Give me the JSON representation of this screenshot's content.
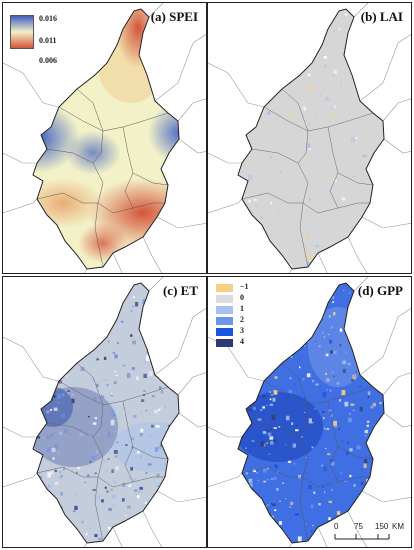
{
  "panels": {
    "a": {
      "title": "(a) SPEI",
      "colorbar": {
        "max": "0.016",
        "mid": "0.011",
        "min": "0.006"
      }
    },
    "b": {
      "title": "(b) LAI"
    },
    "c": {
      "title": "(c) ET"
    },
    "d": {
      "title": "(d) GPP"
    }
  },
  "legend": {
    "items": [
      {
        "label": "−1",
        "color": "#f6cf86"
      },
      {
        "label": "0",
        "color": "#dcdcdc"
      },
      {
        "label": "1",
        "color": "#a7c2ec"
      },
      {
        "label": "2",
        "color": "#6d95e8"
      },
      {
        "label": "3",
        "color": "#1a55e0"
      },
      {
        "label": "4",
        "color": "#2e3a78"
      }
    ]
  },
  "scale_bar": {
    "labels": [
      "0",
      "75",
      "150"
    ],
    "unit": "KM"
  },
  "colors": {
    "spei_blue": "#3f5fc0",
    "spei_mid": "#f3f1c8",
    "spei_red": "#d4553a",
    "lai_gray": "#d6d6d6",
    "et_base": "#c4cddc",
    "gpp_base": "#3f6fe3"
  }
}
